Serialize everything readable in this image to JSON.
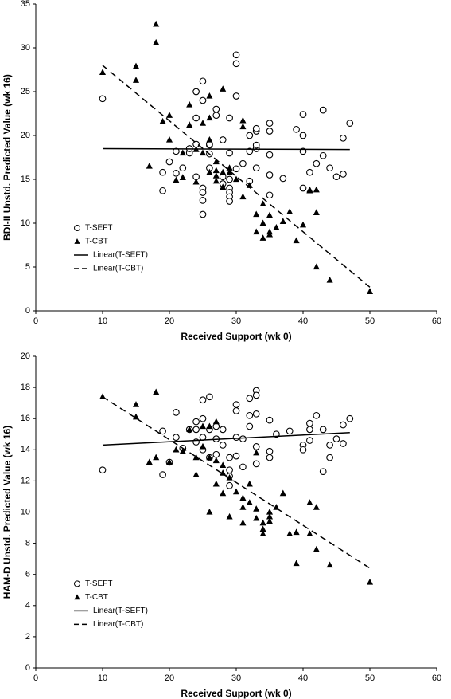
{
  "chart_data": [
    {
      "type": "scatter",
      "x_label": "Received Support (wk 0)",
      "y_label": "BDI-II Unstd. Predicted Value (wk 16)",
      "xlim": [
        0,
        60
      ],
      "xticks": [
        0,
        10,
        20,
        30,
        40,
        50,
        60
      ],
      "ylim": [
        0,
        35
      ],
      "yticks": [
        0,
        5,
        10,
        15,
        20,
        25,
        30,
        35
      ],
      "legend": "lower-left",
      "series": [
        {
          "name": "T-SEFT",
          "marker": "circle",
          "color": "#000000",
          "x": [
            10,
            19,
            19,
            20,
            21,
            21,
            22,
            23,
            23,
            24,
            24,
            25,
            25,
            25,
            25,
            25,
            25,
            24,
            24,
            26,
            26,
            26,
            26,
            27,
            27,
            28,
            28,
            28,
            29,
            29,
            29,
            29,
            29,
            29,
            29,
            30,
            30,
            30,
            30,
            31,
            32,
            32,
            32,
            33,
            33,
            33,
            33,
            33,
            35,
            35,
            35,
            35,
            35,
            37,
            39,
            40,
            40,
            40,
            40,
            41,
            42,
            43,
            43,
            44,
            45,
            46,
            46,
            47
          ],
          "values": [
            24.2,
            13.7,
            15.8,
            17,
            18.2,
            15.7,
            16.3,
            18,
            18.5,
            19,
            15.3,
            14,
            13.5,
            11,
            12.6,
            26.2,
            24,
            25,
            22,
            18.9,
            19,
            17.9,
            16.3,
            22.3,
            23,
            15.3,
            14.5,
            19.5,
            14,
            13.5,
            13,
            12.5,
            15,
            18,
            22,
            29.2,
            28.2,
            24.5,
            16.2,
            16.8,
            14.8,
            18.2,
            20,
            20.5,
            20.8,
            18.5,
            18.9,
            16.3,
            21.4,
            20.5,
            17.8,
            13.2,
            15.5,
            15.1,
            20.7,
            22.4,
            20,
            18.2,
            14,
            15.8,
            16.8,
            22.9,
            17.7,
            16.3,
            15.3,
            15.6,
            19.7,
            21.4
          ]
        },
        {
          "name": "T-CBT",
          "marker": "triangle",
          "color": "#000000",
          "x": [
            10,
            15,
            15,
            18,
            18,
            17,
            19,
            20,
            20,
            21,
            22,
            22,
            23,
            23,
            24,
            24,
            25,
            25,
            26,
            26,
            26,
            26,
            27,
            27,
            27,
            27,
            28,
            28,
            28,
            29,
            29,
            30,
            31,
            31,
            31,
            32,
            33,
            33,
            34,
            34,
            34,
            35,
            35,
            35,
            36,
            37,
            38,
            39,
            40,
            41,
            41,
            42,
            42,
            42,
            44,
            50
          ],
          "values": [
            27.2,
            27.9,
            26.3,
            32.7,
            30.6,
            16.5,
            21.6,
            22.3,
            19.5,
            14.9,
            15.2,
            18,
            23.5,
            21.2,
            18.4,
            14.7,
            18,
            21.4,
            24.5,
            22,
            19.5,
            15.8,
            17,
            16,
            15.4,
            14.8,
            25.3,
            15.8,
            14.1,
            16.3,
            15.8,
            15,
            21.7,
            21,
            13,
            14.3,
            11,
            9,
            12.2,
            10,
            8.3,
            8.7,
            10.9,
            9,
            9.5,
            10.2,
            11.3,
            8,
            9.8,
            13.8,
            13.7,
            13.8,
            11.2,
            5,
            3.5,
            2.2
          ]
        },
        {
          "name": "Linear(T-SEFT)",
          "marker": "line",
          "dashed": false,
          "color": "#000000",
          "x": [
            10,
            47
          ],
          "values": [
            18.5,
            18.4
          ]
        },
        {
          "name": "Linear(T-CBT)",
          "marker": "line",
          "dashed": true,
          "color": "#000000",
          "x": [
            10,
            50
          ],
          "values": [
            28,
            2.7
          ]
        }
      ]
    },
    {
      "type": "scatter",
      "x_label": "Received Support (wk 0)",
      "y_label": "HAM-D Unstd. Predicted Value (wk 16)",
      "xlim": [
        0,
        60
      ],
      "xticks": [
        0,
        10,
        20,
        30,
        40,
        50,
        60
      ],
      "ylim": [
        0,
        20
      ],
      "yticks": [
        0,
        2,
        4,
        6,
        8,
        10,
        12,
        14,
        16,
        18,
        20
      ],
      "legend": "lower-left",
      "series": [
        {
          "name": "T-SEFT",
          "marker": "circle",
          "color": "#000000",
          "x": [
            10,
            19,
            19,
            20,
            21,
            21,
            22,
            23,
            24,
            24,
            24,
            25,
            25,
            25,
            25,
            26,
            26,
            26,
            27,
            27,
            27,
            28,
            28,
            29,
            29,
            29,
            29,
            30,
            30,
            30,
            30,
            31,
            31,
            32,
            32,
            32,
            33,
            33,
            33,
            33,
            33,
            35,
            35,
            35,
            36,
            38,
            40,
            40,
            41,
            41,
            41,
            42,
            43,
            43,
            44,
            44,
            45,
            46,
            46,
            47
          ],
          "values": [
            12.7,
            12.4,
            15.2,
            13.2,
            16.4,
            14.8,
            14.1,
            15.3,
            15.8,
            15.3,
            14.5,
            17.2,
            16,
            14,
            14.8,
            17.4,
            15.3,
            13.5,
            15.5,
            14.7,
            13.7,
            15.3,
            14.3,
            13.5,
            12.7,
            11.7,
            12.3,
            16.9,
            16.5,
            14.8,
            13.6,
            14.7,
            12.9,
            17.3,
            16.2,
            15.5,
            17.8,
            17.5,
            16.3,
            14.2,
            13.1,
            15.9,
            13.9,
            13.5,
            15,
            15.2,
            14.3,
            14,
            15.7,
            15.3,
            14.6,
            16.2,
            12.6,
            15.3,
            14.3,
            13.5,
            14.7,
            15.6,
            14.4,
            16
          ]
        },
        {
          "name": "T-CBT",
          "marker": "triangle",
          "color": "#000000",
          "x": [
            10,
            15,
            15,
            17,
            18,
            18,
            20,
            21,
            22,
            23,
            24,
            24,
            25,
            25,
            26,
            26,
            26,
            27,
            27,
            27,
            28,
            28,
            28,
            29,
            29,
            30,
            31,
            31,
            31,
            32,
            32,
            33,
            33,
            33,
            34,
            34,
            34,
            35,
            35,
            35,
            36,
            37,
            38,
            39,
            39,
            41,
            41,
            42,
            42,
            44,
            50
          ],
          "values": [
            17.4,
            16.9,
            16.1,
            13.2,
            17.7,
            13.5,
            13.2,
            14,
            13.9,
            15.3,
            12.4,
            13.5,
            14.2,
            15.5,
            15.5,
            13.5,
            10,
            15.8,
            13.3,
            11.8,
            13,
            12.5,
            11.2,
            9.7,
            12.2,
            11.3,
            10.9,
            10.3,
            9.3,
            11.8,
            10.6,
            13.8,
            10.2,
            9.6,
            9.3,
            8.9,
            8.6,
            10,
            9.7,
            9.4,
            10.3,
            11.2,
            8.6,
            8.7,
            6.7,
            10.6,
            8.6,
            10.3,
            7.6,
            6.6,
            5.5
          ]
        },
        {
          "name": "Linear(T-SEFT)",
          "marker": "line",
          "dashed": false,
          "color": "#000000",
          "x": [
            10,
            47
          ],
          "values": [
            14.3,
            15.1
          ]
        },
        {
          "name": "Linear(T-CBT)",
          "marker": "line",
          "dashed": true,
          "color": "#000000",
          "x": [
            10,
            50
          ],
          "values": [
            17.4,
            6.4
          ]
        }
      ]
    }
  ]
}
